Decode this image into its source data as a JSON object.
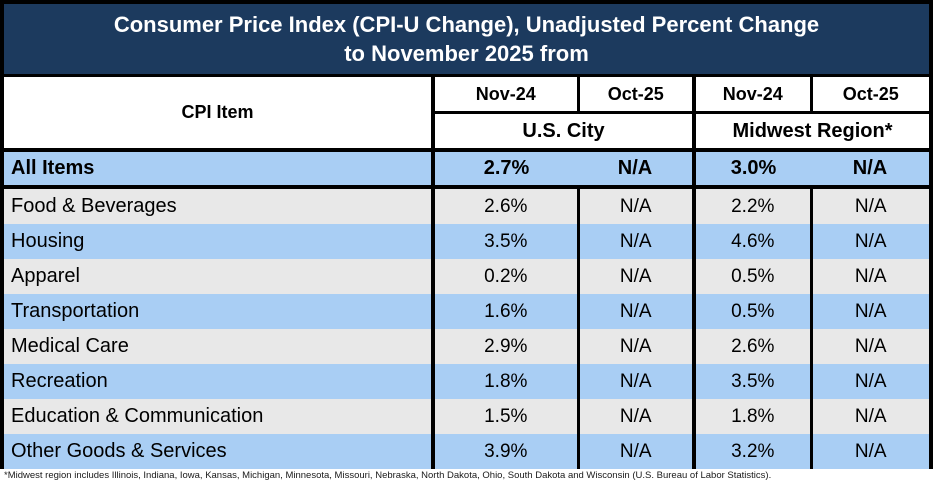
{
  "title": {
    "line1": "Consumer Price Index (CPI-U Change), Unadjusted Percent Change",
    "line2": "to November 2025 from"
  },
  "header": {
    "cpi_item_label": "CPI Item",
    "period_columns": [
      "Nov-24",
      "Oct-25",
      "Nov-24",
      "Oct-25"
    ],
    "region_groups": [
      "U.S. City",
      "Midwest Region*"
    ]
  },
  "rows": [
    {
      "label": "All Items",
      "v1": "2.7%",
      "v2": "N/A",
      "v3": "3.0%",
      "v4": "N/A"
    },
    {
      "label": "Food & Beverages",
      "v1": "2.6%",
      "v2": "N/A",
      "v3": "2.2%",
      "v4": "N/A"
    },
    {
      "label": "Housing",
      "v1": "3.5%",
      "v2": "N/A",
      "v3": "4.6%",
      "v4": "N/A"
    },
    {
      "label": "Apparel",
      "v1": "0.2%",
      "v2": "N/A",
      "v3": "0.5%",
      "v4": "N/A"
    },
    {
      "label": "Transportation",
      "v1": "1.6%",
      "v2": "N/A",
      "v3": "0.5%",
      "v4": "N/A"
    },
    {
      "label": "Medical Care",
      "v1": "2.9%",
      "v2": "N/A",
      "v3": "2.6%",
      "v4": "N/A"
    },
    {
      "label": "Recreation",
      "v1": "1.8%",
      "v2": "N/A",
      "v3": "3.5%",
      "v4": "N/A"
    },
    {
      "label": "Education & Communication",
      "v1": "1.5%",
      "v2": "N/A",
      "v3": "1.8%",
      "v4": "N/A"
    },
    {
      "label": "Other Goods & Services",
      "v1": "3.9%",
      "v2": "N/A",
      "v3": "3.2%",
      "v4": "N/A"
    }
  ],
  "footnote": "*Midwest region includes Illinois, Indiana, Iowa, Kansas, Michigan, Minnesota, Missouri, Nebraska, North Dakota, Ohio, South Dakota and Wisconsin (U.S. Bureau of Labor Statistics).",
  "colors": {
    "title_background": "#1C3A5E",
    "title_text": "#FFFFFF",
    "row_blue": "#A9CEF4",
    "row_gray": "#E8E8E8",
    "border": "#000000"
  },
  "chart_data": {
    "type": "table",
    "title": "Consumer Price Index (CPI-U Change), Unadjusted Percent Change to November 2025 from",
    "column_groups": [
      "U.S. City",
      "Midwest Region*"
    ],
    "columns": [
      "CPI Item",
      "U.S. City Nov-24",
      "U.S. City Oct-25",
      "Midwest Region* Nov-24",
      "Midwest Region* Oct-25"
    ],
    "rows": [
      [
        "All Items",
        "2.7%",
        "N/A",
        "3.0%",
        "N/A"
      ],
      [
        "Food & Beverages",
        "2.6%",
        "N/A",
        "2.2%",
        "N/A"
      ],
      [
        "Housing",
        "3.5%",
        "N/A",
        "4.6%",
        "N/A"
      ],
      [
        "Apparel",
        "0.2%",
        "N/A",
        "0.5%",
        "N/A"
      ],
      [
        "Transportation",
        "1.6%",
        "N/A",
        "0.5%",
        "N/A"
      ],
      [
        "Medical Care",
        "2.9%",
        "N/A",
        "2.6%",
        "N/A"
      ],
      [
        "Recreation",
        "1.8%",
        "N/A",
        "3.5%",
        "N/A"
      ],
      [
        "Education & Communication",
        "1.5%",
        "N/A",
        "1.8%",
        "N/A"
      ],
      [
        "Other Goods & Services",
        "3.9%",
        "N/A",
        "3.2%",
        "N/A"
      ]
    ],
    "numeric_values_pct": {
      "us_city_nov24": [
        2.7,
        2.6,
        3.5,
        0.2,
        1.6,
        2.9,
        1.8,
        1.5,
        3.9
      ],
      "midwest_nov24": [
        3.0,
        2.2,
        4.6,
        0.5,
        0.5,
        2.6,
        3.5,
        1.8,
        3.2
      ]
    }
  }
}
